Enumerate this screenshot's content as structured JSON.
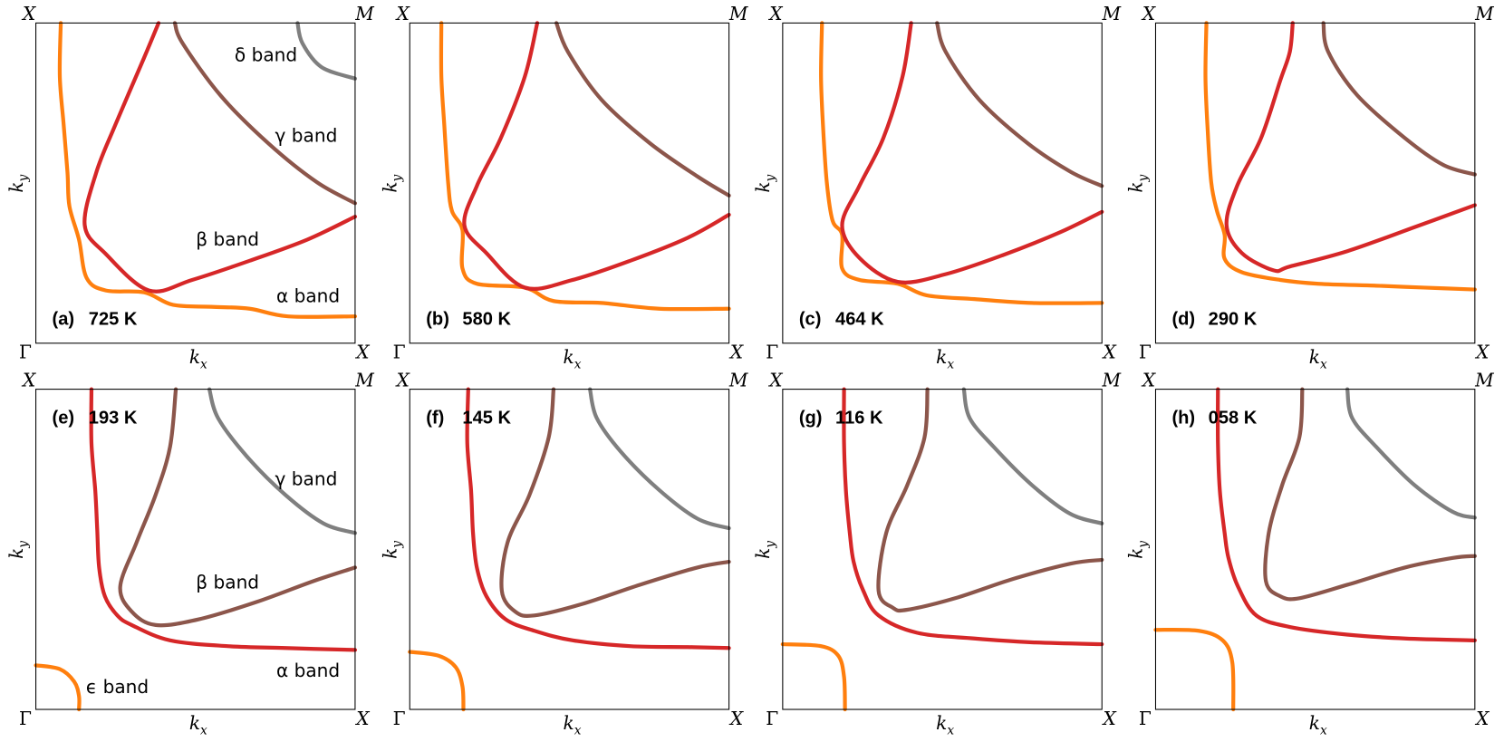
{
  "axes": {
    "corner_top_left": "X",
    "corner_top_right": "M",
    "corner_bottom_left": "Γ",
    "corner_bottom_right": "X",
    "xlabel": {
      "main": "k",
      "sub": "x"
    },
    "ylabel": {
      "main": "k",
      "sub": "y"
    }
  },
  "panels": [
    {
      "tag": "(a)",
      "temperature": "725 K",
      "band_labels": [
        "δ band",
        "γ band",
        "β band",
        "α band"
      ]
    },
    {
      "tag": "(b)",
      "temperature": "580 K",
      "band_labels": []
    },
    {
      "tag": "(c)",
      "temperature": "464 K",
      "band_labels": []
    },
    {
      "tag": "(d)",
      "temperature": "290 K",
      "band_labels": []
    },
    {
      "tag": "(e)",
      "temperature": "193 K",
      "band_labels": [
        "γ band",
        "β band",
        "α band",
        "ϵ band"
      ]
    },
    {
      "tag": "(f)",
      "temperature": "145 K",
      "band_labels": []
    },
    {
      "tag": "(g)",
      "temperature": "116 K",
      "band_labels": []
    },
    {
      "tag": "(h)",
      "temperature": "058 K",
      "band_labels": []
    }
  ]
}
